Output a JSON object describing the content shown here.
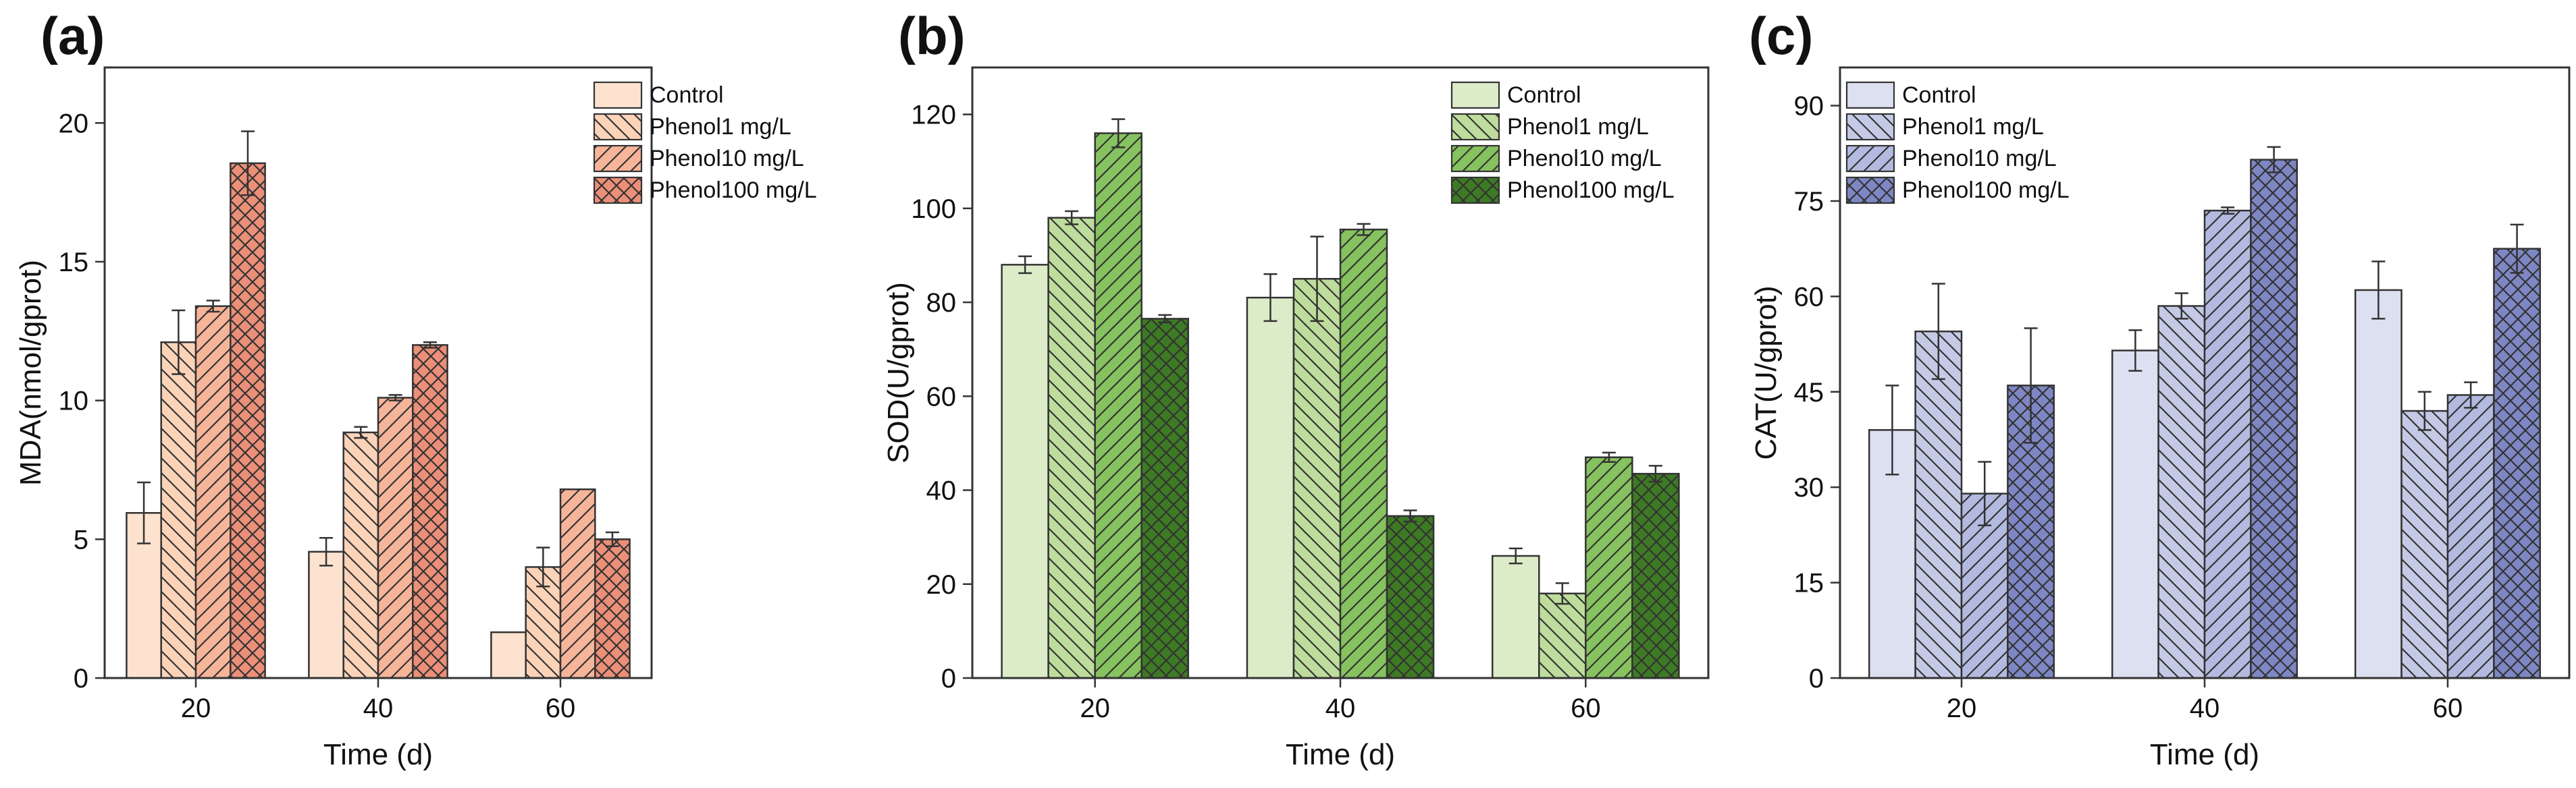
{
  "chart_data": [
    {
      "type": "bar",
      "panel": "(a)",
      "categories": [
        "20",
        "40",
        "60"
      ],
      "xlabel": "Time (d)",
      "ylabel": "MDA(nmol/gprot)",
      "ylim": [
        0,
        22
      ],
      "yticks": [
        "0",
        "5",
        "10",
        "15",
        "20"
      ],
      "ytick_values": [
        0,
        5,
        10,
        15,
        20
      ],
      "legend_position": "top-right",
      "series": [
        {
          "name": "Control",
          "values": [
            5.95,
            4.55,
            1.65
          ],
          "errors": [
            1.1,
            0.5,
            0.0
          ],
          "color": "#fde3cf",
          "pattern": "none"
        },
        {
          "name": "Phenol1 mg/L",
          "values": [
            12.1,
            8.85,
            4.0
          ],
          "errors": [
            1.15,
            0.2,
            0.7
          ],
          "color": "#fbd3b8",
          "pattern": "backslash"
        },
        {
          "name": "Phenol10 mg/L",
          "values": [
            13.4,
            10.1,
            6.8
          ],
          "errors": [
            0.2,
            0.1,
            0.0
          ],
          "color": "#f6b499",
          "pattern": "slash"
        },
        {
          "name": "Phenol100 mg/L",
          "values": [
            18.55,
            12.0,
            5.0
          ],
          "errors": [
            1.15,
            0.1,
            0.25
          ],
          "color": "#eb8f78",
          "pattern": "cross"
        }
      ]
    },
    {
      "type": "bar",
      "panel": "(b)",
      "categories": [
        "20",
        "40",
        "60"
      ],
      "xlabel": "Time (d)",
      "ylabel": "SOD(U/gprot)",
      "ylim": [
        0,
        130
      ],
      "yticks": [
        "0",
        "20",
        "40",
        "60",
        "80",
        "100",
        "120"
      ],
      "ytick_values": [
        0,
        20,
        40,
        60,
        80,
        100,
        120
      ],
      "legend_position": "top-right",
      "series": [
        {
          "name": "Control",
          "values": [
            88,
            81,
            26
          ],
          "errors": [
            1.8,
            5.0,
            1.6
          ],
          "color": "#dcecc8",
          "pattern": "none"
        },
        {
          "name": "Phenol1 mg/L",
          "values": [
            98,
            85,
            18
          ],
          "errors": [
            1.4,
            9.0,
            2.2
          ],
          "color": "#bedd9c",
          "pattern": "backslash"
        },
        {
          "name": "Phenol10 mg/L",
          "values": [
            116,
            95.5,
            47
          ],
          "errors": [
            3.0,
            1.2,
            1.0
          ],
          "color": "#86c25f",
          "pattern": "slash"
        },
        {
          "name": "Phenol100 mg/L",
          "values": [
            76.5,
            34.5,
            43.5
          ],
          "errors": [
            0.8,
            1.2,
            1.7
          ],
          "color": "#3d7a24",
          "pattern": "cross"
        }
      ]
    },
    {
      "type": "bar",
      "panel": "(c)",
      "categories": [
        "20",
        "40",
        "60"
      ],
      "xlabel": "Time (d)",
      "ylabel": "CAT(U/gprot)",
      "ylim": [
        0,
        96
      ],
      "yticks": [
        "0",
        "15",
        "30",
        "45",
        "60",
        "75",
        "90"
      ],
      "ytick_values": [
        0,
        15,
        30,
        45,
        60,
        75,
        90
      ],
      "legend_position": "top-left",
      "series": [
        {
          "name": "Control",
          "values": [
            39,
            51.5,
            61
          ],
          "errors": [
            7.0,
            3.2,
            4.5
          ],
          "color": "#dde0f1",
          "pattern": "none"
        },
        {
          "name": "Phenol1 mg/L",
          "values": [
            54.5,
            58.5,
            42
          ],
          "errors": [
            7.5,
            2.0,
            3.0
          ],
          "color": "#c4cae6",
          "pattern": "backslash"
        },
        {
          "name": "Phenol10 mg/L",
          "values": [
            29,
            73.5,
            44.5
          ],
          "errors": [
            5.0,
            0.5,
            2.0
          ],
          "color": "#b3badf",
          "pattern": "slash"
        },
        {
          "name": "Phenol100 mg/L",
          "values": [
            46,
            81.5,
            67.5
          ],
          "errors": [
            9.0,
            2.0,
            3.8
          ],
          "color": "#7e87c4",
          "pattern": "cross"
        }
      ]
    }
  ]
}
